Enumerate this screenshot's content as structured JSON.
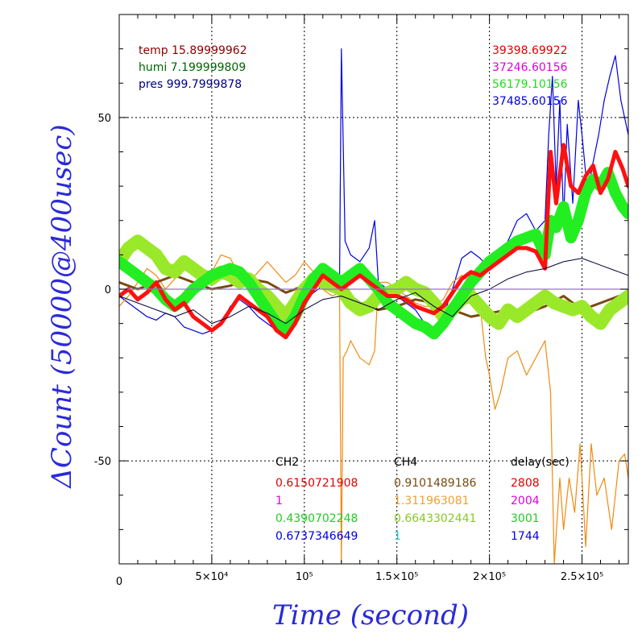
{
  "chart_data": {
    "type": "line",
    "xlabel": "Time (second)",
    "ylabel": "ΔCount (50000@400usec)",
    "xlim": [
      0,
      275000
    ],
    "ylim": [
      -80,
      80
    ],
    "grid": true,
    "x_ticks": [
      {
        "value": 0,
        "label": "0"
      },
      {
        "value": 50000,
        "label": "5×10⁴"
      },
      {
        "value": 100000,
        "label": "10⁵"
      },
      {
        "value": 150000,
        "label": "1.5×10⁵"
      },
      {
        "value": 200000,
        "label": "2×10⁵"
      },
      {
        "value": 250000,
        "label": "2.5×10⁵"
      }
    ],
    "y_ticks": [
      {
        "value": 50,
        "label": "50"
      },
      {
        "value": 0,
        "label": "0"
      },
      {
        "value": -50,
        "label": "-50"
      }
    ],
    "env_readings": [
      {
        "text": "temp 15.89999962",
        "color": "#8b0000"
      },
      {
        "text": "humi 7.199999809",
        "color": "#006400"
      },
      {
        "text": "pres 999.7999878",
        "color": "#000080"
      }
    ],
    "counts": [
      {
        "text": "39398.69922",
        "color": "#e00000"
      },
      {
        "text": "37246.60156",
        "color": "#e000e0"
      },
      {
        "text": "56179.10156",
        "color": "#22dd22"
      },
      {
        "text": "37485.60156",
        "color": "#0000dd"
      }
    ],
    "table": {
      "headers": [
        "CH2",
        "CH4",
        "delay(sec)"
      ],
      "rows": [
        {
          "ch2": "0.6150721908",
          "ch2_color": "#e00000",
          "ch4": "0.9101489186",
          "ch4_color": "#7a4a10",
          "delay": "2808",
          "delay_color": "#e00000"
        },
        {
          "ch2": "1",
          "ch2_color": "#e000e0",
          "ch4": "1.311963081",
          "ch4_color": "#f0a030",
          "delay": "2004",
          "delay_color": "#e000e0"
        },
        {
          "ch2": "0.4390702248",
          "ch2_color": "#22cc22",
          "ch4": "0.6643302441",
          "ch4_color": "#88c828",
          "delay": "3001",
          "delay_color": "#22cc22"
        },
        {
          "ch2": "0.6737346649",
          "ch2_color": "#0000dd",
          "ch4": "1",
          "ch4_color": "#22cccc",
          "delay": "1744",
          "delay_color": "#0000dd"
        }
      ]
    },
    "series": [
      {
        "color": "#0000dd",
        "width": 1.2,
        "x": [
          0,
          5000,
          10000,
          15000,
          20000,
          25000,
          30000,
          35000,
          40000,
          45000,
          50000,
          55000,
          60000,
          65000,
          70000,
          75000,
          80000,
          85000,
          90000,
          95000,
          100000,
          105000,
          110000,
          115000,
          119000,
          120000,
          122000,
          125000,
          130000,
          135000,
          138000,
          140000,
          145000,
          150000,
          155000,
          160000,
          165000,
          170000,
          175000,
          180000,
          185000,
          190000,
          195000,
          200000,
          205000,
          210000,
          215000,
          220000,
          225000,
          230000,
          232000,
          234000,
          236000,
          238000,
          240000,
          242000,
          245000,
          248000,
          250000,
          253000,
          256000,
          259000,
          262000,
          265000,
          268000,
          271000,
          275000
        ],
        "y": [
          -2,
          -4,
          -6,
          -8,
          -9,
          -7,
          -8,
          -11,
          -12,
          -13,
          -12,
          -10,
          -5,
          -3,
          -5,
          -8,
          -10,
          -12,
          -11,
          -6,
          -3,
          -1,
          1,
          3,
          2,
          70,
          14,
          10,
          8,
          12,
          20,
          2,
          0,
          -2,
          -4,
          -6,
          -10,
          -12,
          -8,
          0,
          9,
          11,
          9,
          6,
          8,
          14,
          20,
          22,
          17,
          20,
          45,
          62,
          30,
          55,
          20,
          48,
          25,
          55,
          45,
          28,
          37,
          45,
          55,
          62,
          68,
          55,
          45
        ]
      },
      {
        "color": "#f08a10",
        "width": 1.2,
        "x": [
          0,
          5000,
          10000,
          15000,
          20000,
          25000,
          30000,
          35000,
          40000,
          45000,
          50000,
          55000,
          60000,
          65000,
          70000,
          75000,
          80000,
          85000,
          90000,
          95000,
          100000,
          105000,
          110000,
          115000,
          119000,
          120000,
          121000,
          123000,
          125000,
          130000,
          135000,
          138000,
          140000,
          145000,
          150000,
          155000,
          160000,
          165000,
          170000,
          175000,
          180000,
          185000,
          190000,
          195000,
          198000,
          200000,
          203000,
          206000,
          210000,
          215000,
          220000,
          225000,
          230000,
          233000,
          235000,
          238000,
          240000,
          243000,
          246000,
          249000,
          252000,
          255000,
          258000,
          262000,
          266000,
          270000,
          273000,
          275000
        ],
        "y": [
          -5,
          -2,
          2,
          6,
          4,
          0,
          3,
          6,
          5,
          3,
          5,
          10,
          9,
          4,
          2,
          5,
          8,
          5,
          2,
          4,
          8,
          5,
          0,
          -2,
          -1,
          -80,
          -20,
          -18,
          -15,
          -20,
          -22,
          -18,
          2,
          2,
          0,
          -2,
          -4,
          -5,
          -5,
          -3,
          2,
          4,
          2,
          -5,
          -20,
          -25,
          -35,
          -30,
          -20,
          -18,
          -25,
          -20,
          -15,
          -30,
          -80,
          -55,
          -70,
          -55,
          -65,
          -45,
          -75,
          -45,
          -60,
          -55,
          -70,
          -50,
          -48,
          -55
        ]
      },
      {
        "color": "#7a4a10",
        "width": 3,
        "x": [
          0,
          10000,
          20000,
          30000,
          40000,
          50000,
          60000,
          70000,
          80000,
          90000,
          100000,
          110000,
          120000,
          130000,
          140000,
          150000,
          160000,
          170000,
          180000,
          190000,
          200000,
          210000,
          220000,
          230000,
          240000,
          250000,
          260000,
          270000,
          275000
        ],
        "y": [
          2,
          0,
          2,
          4,
          2,
          0,
          1,
          3,
          2,
          -1,
          1,
          2,
          0,
          -4,
          -6,
          -5,
          -3,
          -4,
          -6,
          -8,
          -7,
          -6,
          -7,
          -5,
          -2,
          -6,
          -4,
          -2,
          -3
        ]
      },
      {
        "color": "#9ae82a",
        "width": 16,
        "x": [
          0,
          5000,
          10000,
          15000,
          20000,
          25000,
          30000,
          35000,
          40000,
          45000,
          50000,
          55000,
          60000,
          65000,
          70000,
          75000,
          80000,
          85000,
          90000,
          95000,
          100000,
          105000,
          110000,
          115000,
          120000,
          125000,
          130000,
          135000,
          140000,
          145000,
          150000,
          155000,
          160000,
          165000,
          170000,
          175000,
          180000,
          185000,
          190000,
          195000,
          200000,
          205000,
          210000,
          215000,
          220000,
          225000,
          230000,
          235000,
          240000,
          245000,
          250000,
          255000,
          260000,
          265000,
          270000,
          275000
        ],
        "y": [
          8,
          12,
          14,
          12,
          10,
          6,
          5,
          8,
          6,
          4,
          3,
          5,
          4,
          2,
          3,
          0,
          -2,
          -5,
          -8,
          -4,
          0,
          3,
          2,
          1,
          0,
          -4,
          -6,
          -5,
          -2,
          -1,
          0,
          2,
          0,
          -1,
          -4,
          -8,
          -6,
          -3,
          -2,
          -5,
          -8,
          -10,
          -6,
          -8,
          -6,
          -4,
          -2,
          -4,
          -5,
          -6,
          -5,
          -8,
          -10,
          -6,
          -4,
          -2
        ]
      },
      {
        "color": "#22ee22",
        "width": 14,
        "x": [
          0,
          5000,
          10000,
          15000,
          20000,
          25000,
          30000,
          35000,
          40000,
          45000,
          50000,
          55000,
          60000,
          65000,
          70000,
          75000,
          80000,
          85000,
          90000,
          95000,
          100000,
          105000,
          110000,
          115000,
          120000,
          125000,
          130000,
          135000,
          140000,
          145000,
          150000,
          155000,
          160000,
          165000,
          170000,
          175000,
          180000,
          185000,
          190000,
          195000,
          200000,
          205000,
          210000,
          215000,
          220000,
          225000,
          230000,
          233000,
          236000,
          240000,
          244000,
          248000,
          252000,
          256000,
          260000,
          264000,
          268000,
          272000,
          275000
        ],
        "y": [
          8,
          6,
          4,
          2,
          0,
          -3,
          -5,
          -3,
          0,
          2,
          4,
          5,
          6,
          5,
          2,
          -2,
          -6,
          -10,
          -12,
          -8,
          -2,
          3,
          6,
          4,
          2,
          4,
          6,
          3,
          0,
          -4,
          -6,
          -8,
          -10,
          -11,
          -13,
          -10,
          -6,
          -2,
          2,
          5,
          8,
          10,
          12,
          14,
          15,
          16,
          10,
          20,
          18,
          24,
          15,
          20,
          28,
          32,
          30,
          34,
          28,
          24,
          22
        ]
      },
      {
        "color": "#ff1010",
        "width": 5,
        "x": [
          0,
          5000,
          10000,
          15000,
          20000,
          25000,
          30000,
          35000,
          40000,
          45000,
          50000,
          55000,
          60000,
          65000,
          70000,
          75000,
          80000,
          85000,
          90000,
          95000,
          100000,
          105000,
          110000,
          115000,
          120000,
          125000,
          130000,
          135000,
          140000,
          145000,
          150000,
          155000,
          160000,
          165000,
          170000,
          175000,
          180000,
          185000,
          190000,
          195000,
          200000,
          205000,
          210000,
          215000,
          220000,
          225000,
          230000,
          233000,
          236000,
          240000,
          244000,
          248000,
          252000,
          256000,
          260000,
          264000,
          268000,
          272000,
          275000
        ],
        "y": [
          -2,
          0,
          -3,
          -1,
          2,
          -3,
          -6,
          -4,
          -8,
          -10,
          -12,
          -10,
          -6,
          -2,
          -4,
          -6,
          -8,
          -12,
          -14,
          -10,
          -4,
          0,
          4,
          2,
          0,
          2,
          4,
          2,
          0,
          -2,
          -2,
          -3,
          -5,
          -6,
          -7,
          -5,
          -1,
          3,
          5,
          4,
          6,
          8,
          10,
          12,
          12,
          11,
          6,
          40,
          25,
          42,
          30,
          28,
          33,
          36,
          28,
          32,
          40,
          35,
          30
        ]
      },
      {
        "color": "#000033",
        "width": 1,
        "x": [
          0,
          10000,
          20000,
          30000,
          40000,
          50000,
          60000,
          70000,
          80000,
          90000,
          100000,
          110000,
          120000,
          130000,
          140000,
          150000,
          160000,
          170000,
          180000,
          190000,
          200000,
          210000,
          220000,
          230000,
          240000,
          250000,
          260000,
          270000,
          275000
        ],
        "y": [
          -2,
          -4,
          -6,
          -8,
          -6,
          -10,
          -8,
          -5,
          -7,
          -10,
          -6,
          -3,
          -2,
          -4,
          -6,
          -3,
          -1,
          -5,
          -8,
          -2,
          0,
          3,
          5,
          6,
          8,
          9,
          7,
          5,
          4
        ]
      }
    ]
  }
}
